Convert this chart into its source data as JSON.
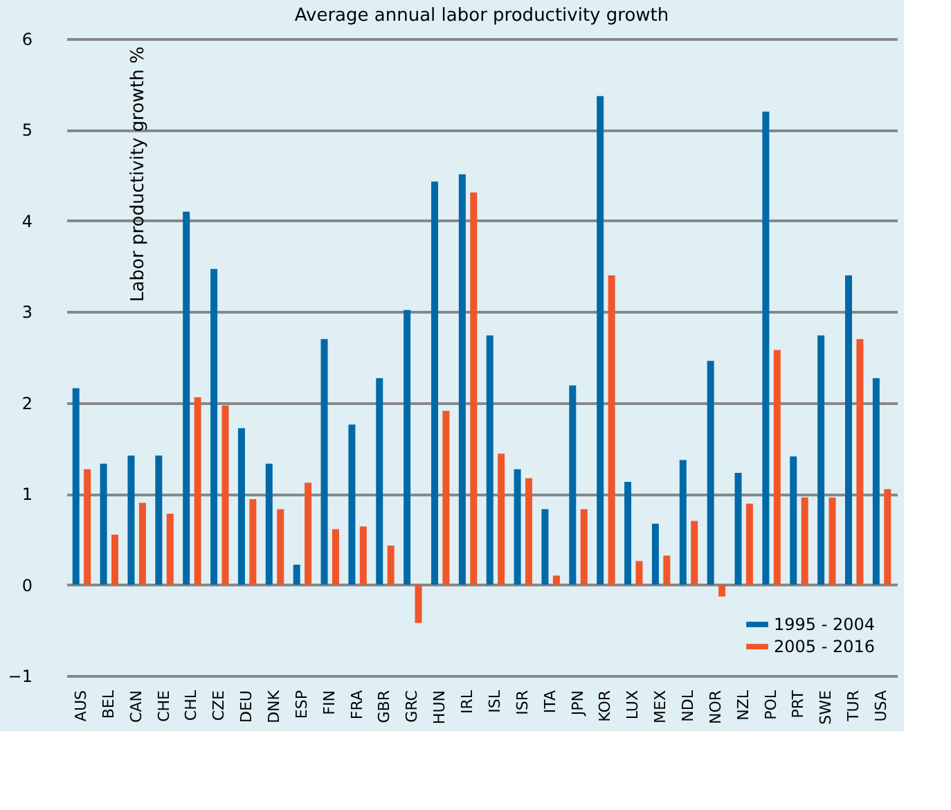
{
  "chart_data": {
    "type": "bar",
    "title": "Average annual labor productivity growth",
    "ylabel": "Labor productivity growth %",
    "categories": [
      "AUS",
      "BEL",
      "CAN",
      "CHE",
      "CHL",
      "CZE",
      "DEU",
      "DNK",
      "ESP",
      "FIN",
      "FRA",
      "GBR",
      "GRC",
      "HUN",
      "IRL",
      "ISL",
      "ISR",
      "ITA",
      "JPN",
      "KOR",
      "LUX",
      "MEX",
      "NDL",
      "NOR",
      "NZL",
      "POL",
      "PRT",
      "SWE",
      "TUR",
      "USA"
    ],
    "series": [
      {
        "name": "1995 - 2004",
        "color": "#0069a8",
        "values": [
          2.16,
          1.33,
          1.42,
          1.42,
          4.1,
          3.47,
          1.72,
          1.33,
          0.22,
          2.7,
          1.76,
          2.27,
          3.02,
          4.43,
          4.51,
          2.74,
          1.27,
          0.83,
          2.19,
          5.37,
          1.13,
          0.67,
          1.37,
          2.46,
          1.23,
          5.2,
          1.41,
          2.74,
          3.4,
          2.27
        ]
      },
      {
        "name": "2005 - 2016",
        "color": "#f0562a",
        "values": [
          1.27,
          0.55,
          0.9,
          0.78,
          2.06,
          1.97,
          0.94,
          0.83,
          1.12,
          0.61,
          0.64,
          0.43,
          -0.42,
          1.91,
          4.31,
          1.44,
          1.17,
          0.1,
          0.83,
          3.4,
          0.26,
          0.32,
          0.7,
          -0.13,
          0.89,
          2.58,
          0.96,
          0.96,
          2.7,
          1.05
        ]
      }
    ],
    "ylim": [
      -1,
      6
    ],
    "yticks": [
      -1,
      0,
      1,
      2,
      3,
      4,
      5,
      6
    ],
    "grid": "y",
    "legend": "bottom right"
  }
}
